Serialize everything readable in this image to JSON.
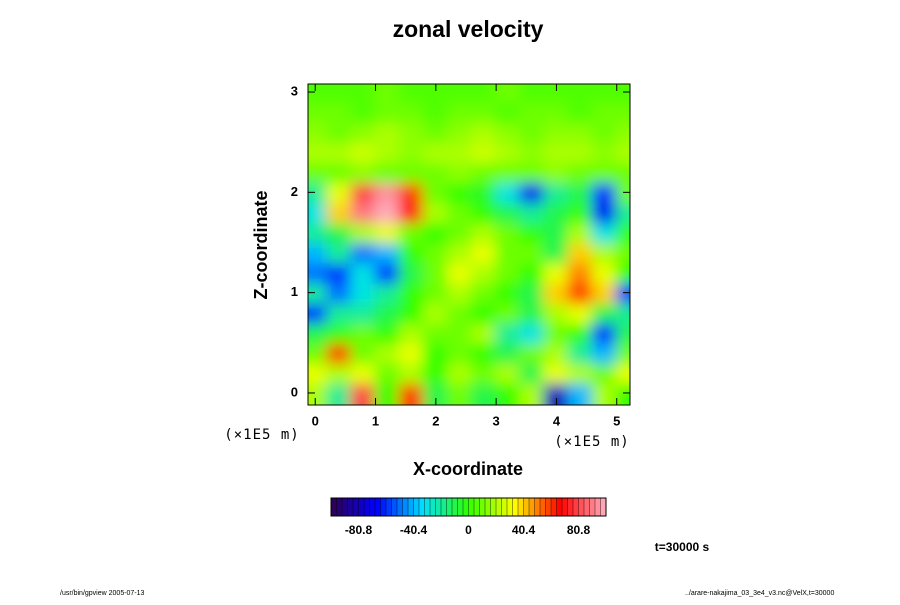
{
  "chart_data": {
    "type": "heatmap",
    "title": "zonal velocity",
    "x_label": "X-coordinate",
    "y_label": "Z-coordinate",
    "x_unit": "(×1E5 m)",
    "y_unit": "(×1E5 m)",
    "xlim": [
      -0.12,
      5.22
    ],
    "ylim": [
      -0.12,
      3.08
    ],
    "xticks": [
      0,
      1,
      2,
      3,
      4,
      5
    ],
    "yticks": [
      0,
      1,
      2,
      3
    ],
    "x": [
      0,
      0.4,
      0.8,
      1.2,
      1.6,
      2.0,
      2.4,
      2.8,
      3.2,
      3.6,
      4.0,
      4.4,
      4.8,
      5.2
    ],
    "z": [
      0,
      0.2,
      0.4,
      0.6,
      0.8,
      1.0,
      1.2,
      1.4,
      1.6,
      1.8,
      2.0,
      2.2,
      2.4,
      2.6,
      2.8,
      3.0
    ],
    "values": [
      [
        20,
        -20,
        80,
        0,
        60,
        -10,
        10,
        -10,
        0,
        20,
        -80,
        -40,
        20,
        0
      ],
      [
        30,
        20,
        30,
        10,
        20,
        0,
        20,
        10,
        20,
        -10,
        30,
        20,
        10,
        30
      ],
      [
        10,
        60,
        10,
        20,
        30,
        0,
        10,
        0,
        -10,
        10,
        20,
        -20,
        -40,
        10
      ],
      [
        -10,
        0,
        10,
        0,
        20,
        10,
        10,
        20,
        -20,
        -30,
        10,
        0,
        -60,
        -10
      ],
      [
        -60,
        -20,
        -20,
        -10,
        0,
        20,
        10,
        0,
        10,
        -10,
        20,
        30,
        -10,
        -20
      ],
      [
        -20,
        -50,
        -30,
        -20,
        0,
        10,
        20,
        10,
        0,
        -10,
        40,
        60,
        40,
        -60
      ],
      [
        -50,
        -60,
        -30,
        -60,
        -10,
        10,
        30,
        20,
        10,
        0,
        30,
        50,
        30,
        0
      ],
      [
        -40,
        -20,
        -50,
        -40,
        0,
        10,
        20,
        30,
        10,
        10,
        -10,
        40,
        20,
        10
      ],
      [
        -20,
        -10,
        20,
        30,
        10,
        0,
        10,
        20,
        10,
        0,
        -10,
        20,
        -30,
        0
      ],
      [
        -30,
        40,
        90,
        100,
        70,
        20,
        10,
        0,
        -10,
        -20,
        -10,
        0,
        -70,
        -20
      ],
      [
        -20,
        30,
        80,
        95,
        60,
        10,
        0,
        -5,
        -30,
        -70,
        -20,
        -10,
        -60,
        10
      ],
      [
        10,
        10,
        15,
        10,
        10,
        10,
        15,
        10,
        10,
        10,
        15,
        10,
        10,
        10
      ],
      [
        20,
        20,
        25,
        20,
        15,
        20,
        20,
        25,
        20,
        15,
        20,
        20,
        15,
        20
      ],
      [
        15,
        10,
        15,
        20,
        15,
        10,
        15,
        20,
        15,
        10,
        15,
        15,
        10,
        15
      ],
      [
        10,
        10,
        5,
        10,
        10,
        5,
        10,
        10,
        5,
        10,
        10,
        5,
        10,
        10
      ],
      [
        5,
        5,
        5,
        10,
        5,
        5,
        5,
        5,
        10,
        5,
        5,
        5,
        5,
        5
      ]
    ],
    "colormap": [
      "#300050",
      "#0000ff",
      "#00e0ff",
      "#30ff00",
      "#ffff00",
      "#ff0000",
      "#ffb0c0"
    ],
    "colorbar": {
      "lim": [
        -101,
        101
      ],
      "ticks": [
        -80.8,
        -40.4,
        0,
        40.4,
        80.8
      ]
    },
    "annotation": "t=30000 s",
    "footer_left": "/usr/bin/gpview 2005-07-13",
    "footer_right": "../arare-nakajima_03_3e4_v3.nc@VelX,t=30000"
  }
}
